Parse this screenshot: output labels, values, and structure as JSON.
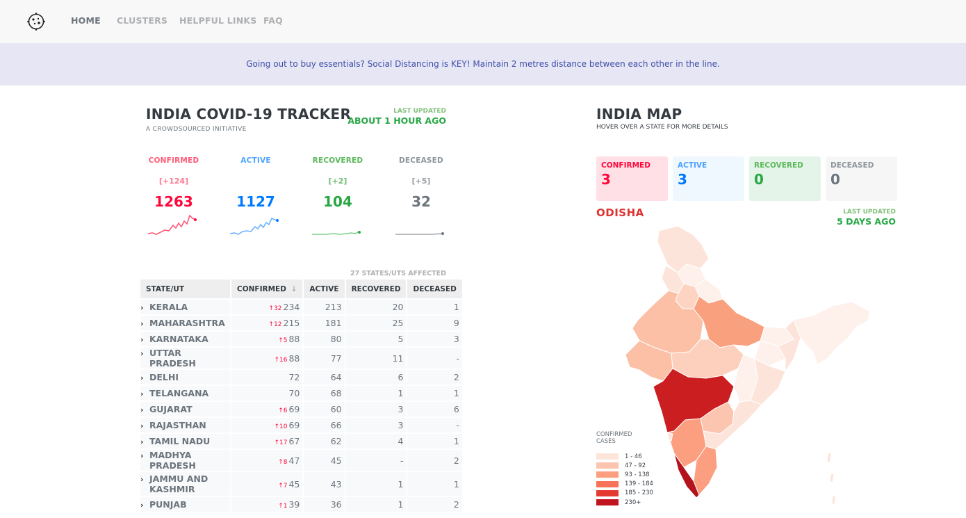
{
  "nav": {
    "items": [
      "HOME",
      "CLUSTERS",
      "HELPFUL LINKS",
      "FAQ"
    ]
  },
  "banner": "Going out to buy essentials? Social Distancing is KEY! Maintain 2 metres distance between each other in the line.",
  "tracker": {
    "title": "INDIA COVID-19 TRACKER",
    "subtitle": "A CROWDSOURCED INITIATIVE",
    "last_updated_label": "LAST UPDATED",
    "last_updated_value": "ABOUT 1 HOUR AGO",
    "stats": [
      {
        "label": "CONFIRMED",
        "delta": "[+124]",
        "count": "1263",
        "color": "#ff073a"
      },
      {
        "label": "ACTIVE",
        "delta": "",
        "count": "1127",
        "color": "#007bff"
      },
      {
        "label": "RECOVERED",
        "delta": "[+2]",
        "count": "104",
        "color": "#28a745"
      },
      {
        "label": "DECEASED",
        "delta": "[+5]",
        "count": "32",
        "color": "#6c757d"
      }
    ],
    "affected": "27 STATES/UTS AFFECTED"
  },
  "table": {
    "headers": [
      "STATE/UT",
      "CONFIRMED",
      "ACTIVE",
      "RECOVERED",
      "DECEASED"
    ],
    "rows": [
      {
        "state": "KERALA",
        "delta": "32",
        "confirmed": "234",
        "active": "213",
        "recovered": "20",
        "deceased": "1"
      },
      {
        "state": "MAHARASHTRA",
        "delta": "12",
        "confirmed": "215",
        "active": "181",
        "recovered": "25",
        "deceased": "9"
      },
      {
        "state": "KARNATAKA",
        "delta": "5",
        "confirmed": "88",
        "active": "80",
        "recovered": "5",
        "deceased": "3"
      },
      {
        "state": "UTTAR PRADESH",
        "delta": "16",
        "confirmed": "88",
        "active": "77",
        "recovered": "11",
        "deceased": "-"
      },
      {
        "state": "DELHI",
        "delta": "",
        "confirmed": "72",
        "active": "64",
        "recovered": "6",
        "deceased": "2"
      },
      {
        "state": "TELANGANA",
        "delta": "",
        "confirmed": "70",
        "active": "68",
        "recovered": "1",
        "deceased": "1"
      },
      {
        "state": "GUJARAT",
        "delta": "6",
        "confirmed": "69",
        "active": "60",
        "recovered": "3",
        "deceased": "6"
      },
      {
        "state": "RAJASTHAN",
        "delta": "10",
        "confirmed": "69",
        "active": "66",
        "recovered": "3",
        "deceased": "-"
      },
      {
        "state": "TAMIL NADU",
        "delta": "17",
        "confirmed": "67",
        "active": "62",
        "recovered": "4",
        "deceased": "1"
      },
      {
        "state": "MADHYA PRADESH",
        "delta": "8",
        "confirmed": "47",
        "active": "45",
        "recovered": "-",
        "deceased": "2"
      },
      {
        "state": "JAMMU AND KASHMIR",
        "delta": "7",
        "confirmed": "45",
        "active": "43",
        "recovered": "1",
        "deceased": "1"
      },
      {
        "state": "PUNJAB",
        "delta": "1",
        "confirmed": "39",
        "active": "36",
        "recovered": "1",
        "deceased": "2"
      }
    ]
  },
  "map": {
    "title": "INDIA MAP",
    "subtitle": "HOVER OVER A STATE FOR MORE DETAILS",
    "selected_state": "ODISHA",
    "cards": [
      {
        "label": "CONFIRMED",
        "count": "3",
        "color": "#ff073a",
        "bg": "#ffe0e6"
      },
      {
        "label": "ACTIVE",
        "count": "3",
        "color": "#007bff",
        "bg": "#eff7ff"
      },
      {
        "label": "RECOVERED",
        "count": "0",
        "color": "#28a745",
        "bg": "#e4f4e8"
      },
      {
        "label": "DECEASED",
        "count": "0",
        "color": "#6c757d",
        "bg": "#f6f6f7"
      }
    ],
    "last_updated_label": "LAST UPDATED",
    "last_updated_value": "5 DAYS AGO",
    "legend_title": "CONFIRMED CASES",
    "legend": [
      {
        "range": "1 - 46",
        "color": "#fee5d9"
      },
      {
        "range": "47 - 92",
        "color": "#fcc5b0"
      },
      {
        "range": "93 - 138",
        "color": "#fb9f80"
      },
      {
        "range": "139 - 184",
        "color": "#f6735a"
      },
      {
        "range": "185 - 230",
        "color": "#e53a2f"
      },
      {
        "range": "230+",
        "color": "#c0151f"
      }
    ]
  }
}
